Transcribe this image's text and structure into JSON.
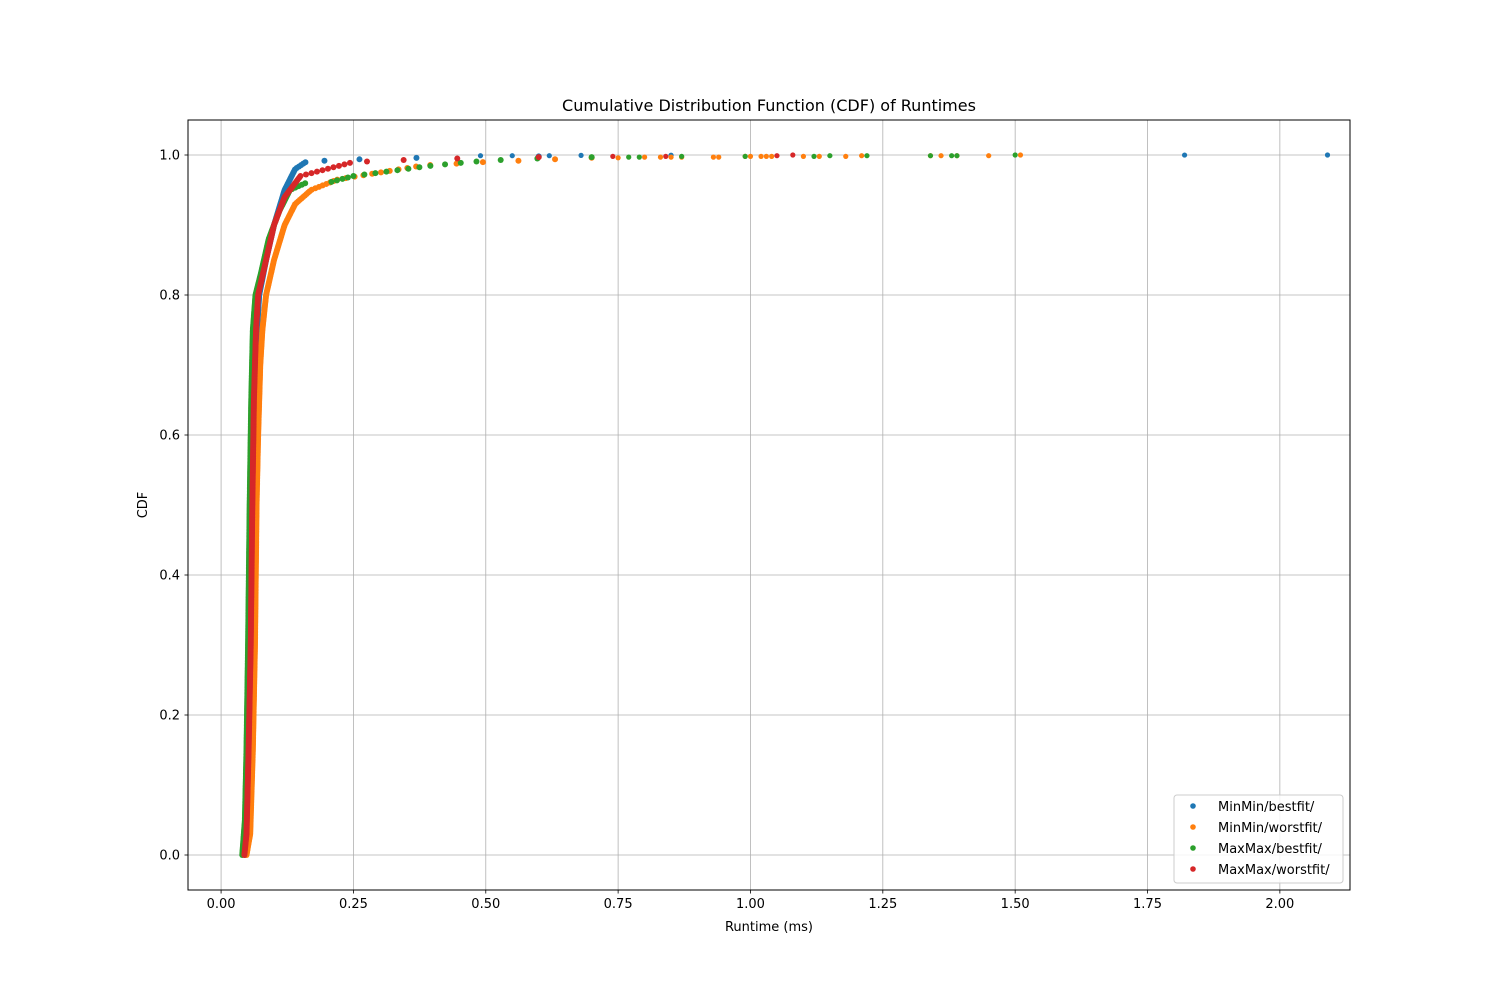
{
  "chart_data": {
    "type": "scatter",
    "title": "Cumulative Distribution Function (CDF) of Runtimes",
    "xlabel": "Runtime (ms)",
    "ylabel": "CDF",
    "xlim": [
      -0.0625,
      2.1325
    ],
    "ylim": [
      -0.05,
      1.05
    ],
    "xticks": [
      0.0,
      0.25,
      0.5,
      0.75,
      1.0,
      1.25,
      1.5,
      1.75,
      2.0
    ],
    "xtick_labels": [
      "0.00",
      "0.25",
      "0.50",
      "0.75",
      "1.00",
      "1.25",
      "1.50",
      "1.75",
      "2.00"
    ],
    "yticks": [
      0.0,
      0.2,
      0.4,
      0.6,
      0.8,
      1.0
    ],
    "ytick_labels": [
      "0.0",
      "0.2",
      "0.4",
      "0.6",
      "0.8",
      "1.0"
    ],
    "grid": true,
    "legend_position": "lower-right",
    "series": [
      {
        "name": "MinMin/bestfit/",
        "color": "#1f77b4",
        "curve": [
          [
            0.045,
            0.0
          ],
          [
            0.05,
            0.03
          ],
          [
            0.055,
            0.15
          ],
          [
            0.058,
            0.3
          ],
          [
            0.061,
            0.5
          ],
          [
            0.065,
            0.65
          ],
          [
            0.068,
            0.75
          ],
          [
            0.072,
            0.8
          ],
          [
            0.085,
            0.85
          ],
          [
            0.1,
            0.9
          ],
          [
            0.12,
            0.95
          ],
          [
            0.14,
            0.98
          ],
          [
            0.16,
            0.99
          ],
          [
            0.2,
            0.992
          ],
          [
            0.3,
            0.995
          ],
          [
            0.45,
            0.997
          ],
          [
            0.6,
            0.998
          ]
        ],
        "outliers": [
          [
            0.49,
            0.999
          ],
          [
            0.55,
            0.999
          ],
          [
            0.62,
            0.999
          ],
          [
            0.68,
            0.9995
          ],
          [
            0.85,
            0.9997
          ],
          [
            1.82,
            0.9999
          ],
          [
            2.09,
            1.0
          ]
        ]
      },
      {
        "name": "MinMin/worstfit/",
        "color": "#ff7f0e",
        "curve": [
          [
            0.048,
            0.0
          ],
          [
            0.055,
            0.03
          ],
          [
            0.06,
            0.15
          ],
          [
            0.064,
            0.3
          ],
          [
            0.067,
            0.5
          ],
          [
            0.07,
            0.6
          ],
          [
            0.074,
            0.7
          ],
          [
            0.078,
            0.75
          ],
          [
            0.085,
            0.8
          ],
          [
            0.1,
            0.85
          ],
          [
            0.12,
            0.9
          ],
          [
            0.14,
            0.93
          ],
          [
            0.17,
            0.95
          ],
          [
            0.22,
            0.965
          ],
          [
            0.3,
            0.975
          ],
          [
            0.38,
            0.985
          ],
          [
            0.5,
            0.99
          ],
          [
            0.6,
            0.993
          ],
          [
            0.7,
            0.996
          ]
        ],
        "outliers": [
          [
            0.75,
            0.996
          ],
          [
            0.8,
            0.997
          ],
          [
            0.83,
            0.997
          ],
          [
            0.85,
            0.997
          ],
          [
            0.87,
            0.997
          ],
          [
            0.93,
            0.997
          ],
          [
            0.94,
            0.997
          ],
          [
            0.99,
            0.998
          ],
          [
            1.0,
            0.998
          ],
          [
            1.02,
            0.998
          ],
          [
            1.03,
            0.998
          ],
          [
            1.04,
            0.998
          ],
          [
            1.1,
            0.998
          ],
          [
            1.13,
            0.998
          ],
          [
            1.18,
            0.998
          ],
          [
            1.21,
            0.999
          ],
          [
            1.34,
            0.999
          ],
          [
            1.36,
            0.999
          ],
          [
            1.39,
            0.999
          ],
          [
            1.45,
            0.999
          ],
          [
            1.51,
            1.0
          ]
        ]
      },
      {
        "name": "MaxMax/bestfit/",
        "color": "#2ca02c",
        "curve": [
          [
            0.04,
            0.0
          ],
          [
            0.045,
            0.05
          ],
          [
            0.048,
            0.15
          ],
          [
            0.051,
            0.3
          ],
          [
            0.054,
            0.5
          ],
          [
            0.057,
            0.65
          ],
          [
            0.06,
            0.75
          ],
          [
            0.065,
            0.8
          ],
          [
            0.075,
            0.83
          ],
          [
            0.09,
            0.88
          ],
          [
            0.11,
            0.92
          ],
          [
            0.13,
            0.95
          ],
          [
            0.16,
            0.96
          ],
          [
            0.2,
            0.96
          ],
          [
            0.25,
            0.97
          ],
          [
            0.3,
            0.975
          ],
          [
            0.4,
            0.985
          ],
          [
            0.5,
            0.992
          ],
          [
            0.6,
            0.995
          ],
          [
            0.7,
            0.997
          ]
        ],
        "outliers": [
          [
            0.77,
            0.997
          ],
          [
            0.79,
            0.997
          ],
          [
            0.87,
            0.998
          ],
          [
            0.99,
            0.998
          ],
          [
            1.12,
            0.998
          ],
          [
            1.15,
            0.999
          ],
          [
            1.22,
            0.999
          ],
          [
            1.34,
            0.999
          ],
          [
            1.38,
            0.999
          ],
          [
            1.39,
            0.999
          ],
          [
            1.5,
            1.0
          ]
        ]
      },
      {
        "name": "MaxMax/worstfit/",
        "color": "#d62728",
        "curve": [
          [
            0.044,
            0.0
          ],
          [
            0.048,
            0.03
          ],
          [
            0.052,
            0.15
          ],
          [
            0.056,
            0.3
          ],
          [
            0.059,
            0.5
          ],
          [
            0.062,
            0.65
          ],
          [
            0.066,
            0.75
          ],
          [
            0.07,
            0.8
          ],
          [
            0.085,
            0.85
          ],
          [
            0.1,
            0.9
          ],
          [
            0.12,
            0.94
          ],
          [
            0.15,
            0.97
          ],
          [
            0.2,
            0.98
          ],
          [
            0.25,
            0.99
          ],
          [
            0.35,
            0.993
          ],
          [
            0.45,
            0.995
          ],
          [
            0.6,
            0.997
          ]
        ],
        "outliers": [
          [
            0.74,
            0.998
          ],
          [
            0.84,
            0.998
          ],
          [
            1.05,
            0.999
          ],
          [
            1.08,
            1.0
          ]
        ]
      }
    ]
  }
}
